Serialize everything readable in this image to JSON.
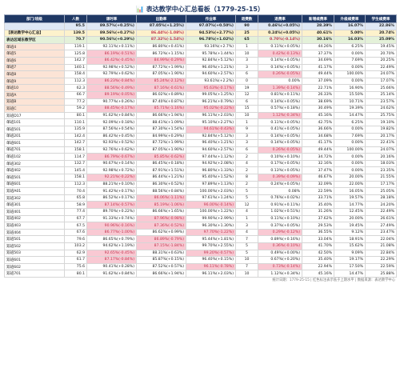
{
  "title": "📊 表达教学中心汇总看板（1779-25-15）",
  "table": {
    "header": [
      "部门/班级",
      "人数",
      "课时率",
      "出勤率",
      "作业率",
      "退费数",
      "退费率",
      "新增续费率",
      "升级续费率",
      "学生续费率"
    ],
    "rows": [
      [
        "",
        "95.5",
        "89.57%(+0.25%)",
        "87.05%(+1.25%)",
        "97.07%(+0.50%)",
        "90",
        "0.46%(+0.05%)",
        "28.39%",
        "16.07%",
        "22.86%"
      ],
      [
        "【表达教学中心汇总】",
        "139.5",
        "89.56%(+0.27%)",
        "86.44%(-1.08%)",
        "94.53%(+2.77%)",
        "25",
        "0.24%(+0.05%)",
        "40.61%",
        "5.00%",
        "20.74%"
      ],
      [
        "表达区域东教学区",
        "70.7",
        "90.56%(+0.29%)",
        "87.32%(-1.54%)",
        "96.78%(+1.02%)",
        "65",
        "0.70%(-0.14%)",
        "30.16%",
        "16.03%",
        "25.09%"
      ],
      [
        "单班4",
        "119.1",
        "92.11%(+0.11%)",
        "86.80%(+0.41%)",
        "93.16%(+2.7%)",
        "1",
        "0.11%(+0.05%)",
        "44.26%",
        "6.25%",
        "19.45%"
      ],
      [
        "单班5",
        "125.8",
        "86.19%(-0.51%)",
        "86.72%(+1.15%)",
        "95.78%(+1.44%)",
        "10",
        "0.42%(-0.13%)",
        "37.37%",
        "0.00%",
        "20.70%"
      ],
      [
        "单班6",
        "142.7",
        "86.42%(-0.45%)",
        "84.99%(-0.29%)",
        "92.84%(+5.12%)",
        "3",
        "0.14%(+0.05%)",
        "34.69%",
        "7.69%",
        "20.25%"
      ],
      [
        "单班7",
        "140.1",
        "92.98%(+0.52%)",
        "87.72%(+1.99%)",
        "96.40%(+1.21%)",
        "3",
        "0.14%(+0.05%)",
        "41.17%",
        "0.00%",
        "22.49%"
      ],
      [
        "单班8",
        "158.4",
        "92.79%(+0.62%)",
        "87.05%(+1.90%)",
        "94.60%(+2.57%)",
        "6",
        "0.26%(-0.05%)",
        "49.44%",
        "100.00%",
        "24.07%"
      ],
      [
        "单班9",
        "112.3",
        "86.23%(-0.84%)",
        "85.24%(-2.12%)",
        "93.61%(+2.2%)",
        "0",
        "0.00%",
        "37.09%",
        "0.00%",
        "17.07%"
      ],
      [
        "单班10",
        "62.3",
        "88.56%(-0.49%)",
        "87.16%(-0.61%)",
        "95.63%(-0.17%)",
        "19",
        "1.39%(-0.14%)",
        "22.71%",
        "16.90%",
        "25.66%"
      ],
      [
        "双班A",
        "66.7",
        "89.19%(-0.05%)",
        "86.02%(+0.89%)",
        "99.05%(+1.25%)",
        "12",
        "0.81%(+0.11%)",
        "26.33%",
        "15.50%",
        "25.14%"
      ],
      [
        "双班B",
        "77.2",
        "90.77%(+0.26%)",
        "87.40%(+0.87%)",
        "96.21%(+0.79%)",
        "6",
        "0.14%(+0.05%)",
        "38.69%",
        "10.71%",
        "23.57%"
      ],
      [
        "双班C",
        "59.2",
        "88.45%(-0.17%)",
        "85.71%(-1.16%)",
        "95.02%(-0.22%)",
        "15",
        "0.57%(+0.18%)",
        "30.49%",
        "19.39%",
        "24.62%"
      ],
      [
        "双班D17",
        "80.1",
        "91.62%(+0.84%)",
        "86.66%(+1.94%)",
        "96.11%(+2.03%)",
        "10",
        "1.12%(-0.34%)",
        "45.16%",
        "14.47%",
        "25.75%"
      ],
      [
        "单班101",
        "110.1",
        "92.09%(+0.18%)",
        "88.41%(+1.09%)",
        "95.10%(+2.27%)",
        "1",
        "0.11%(+0.05%)",
        "42.75%",
        "6.25%",
        "19.10%"
      ],
      [
        "单班501",
        "135.9",
        "87.56%(+0.54%)",
        "87.30%(+1.54%)",
        "94.61%(-0.43%)",
        "9",
        "0.41%(+0.05%)",
        "36.66%",
        "0.00%",
        "19.82%"
      ],
      [
        "单班201",
        "142.4",
        "86.42%(+0.45%)",
        "84.99%(+0.29%)",
        "92.84%(+5.12%)",
        "3",
        "0.14%(+0.05%)",
        "34.68%",
        "7.69%",
        "20.17%"
      ],
      [
        "单班601",
        "142.7",
        "92.93%(+0.52%)",
        "87.72%(+1.99%)",
        "96.40%(+1.21%)",
        "3",
        "0.14%(+0.05%)",
        "41.17%",
        "0.00%",
        "22.41%"
      ],
      [
        "单班701",
        "158.1",
        "92.76%(+0.62%)",
        "87.05%(+1.90%)",
        "94.60%(+2.57%)",
        "6",
        "0.26%(-0.05%)",
        "49.44%",
        "100.00%",
        "24.07%"
      ],
      [
        "单班102",
        "114.7",
        "86.79%(-0.67%)",
        "85.85%(-0.62%)",
        "97.44%(+1.12%)",
        "2",
        "0.10%(+0.10%)",
        "34.72%",
        "0.00%",
        "20.16%"
      ],
      [
        "单班302",
        "132.7",
        "90.67%(+0.14%)",
        "86.45%(+0.18%)",
        "94.92%(+2.08%)",
        "4",
        "0.17%(+0.05%)",
        "32.16%",
        "0.00%",
        "18.03%"
      ],
      [
        "单班402",
        "145.4",
        "92.98%(+0.72%)",
        "87.91%(+1.51%)",
        "96.80%(+1.33%)",
        "2",
        "0.13%(+0.05%)",
        "37.47%",
        "0.00%",
        "23.35%"
      ],
      [
        "单班501",
        "158.1",
        "92.21%(-0.22%)",
        "86.44%(+1.21%)",
        "95.40%(+1.52%)",
        "8",
        "0.39%(-0.09%)",
        "46.67%",
        "20.00%",
        "21.55%"
      ],
      [
        "单班601",
        "112.3",
        "88.21%(+0.10%)",
        "86.30%(+0.52%)",
        "97.89%(+1.13%)",
        "2",
        "0.24%(+0.05%)",
        "32.09%",
        "22.00%",
        "17.17%"
      ],
      [
        "双班A01",
        "70.4",
        "91.42%(+0.17%)",
        "88.56%(+0.84%)",
        "100.00%(+2.03%)",
        "5",
        "0.08%",
        "22.59%",
        "16.05%",
        "25.05%"
      ],
      [
        "双班302",
        "65.8",
        "86.52%(+0.17%)",
        "86.06%(-1.11%)",
        "97.61%(+1.24%)",
        "5",
        "0.76%(+0.02%)",
        "33.71%",
        "19.57%",
        "28.18%"
      ],
      [
        "单班301",
        "58.9",
        "87.14%(-0.57%)",
        "85.19%(-1.06%)",
        "96.00%(-0.14%)",
        "12",
        "0.91%(+0.11%)",
        "35.40%",
        "14.77%",
        "24.20%"
      ],
      [
        "双班401",
        "77.4",
        "89.70%(+0.22%)",
        "86.66%(+1.65%)",
        "100.00%(+1.22%)",
        "4",
        "1.02%(+0.51%)",
        "31.26%",
        "12.45%",
        "22.49%"
      ],
      [
        "双班402",
        "67.7",
        "91.33%(+0.74%)",
        "87.96%(-0.98%)",
        "99.90%(+2.99%)",
        "1",
        "0.11%(+0.10%)",
        "37.62%",
        "20.00%",
        "26.61%"
      ],
      [
        "双班403",
        "67.5",
        "90.96%(-0.16%)",
        "87.36%(-0.52%)",
        "96.30%(+1.30%)",
        "3",
        "0.37%(+0.05%)",
        "29.53%",
        "19.45%",
        "27.49%"
      ],
      [
        "双班404",
        "67.6",
        "86.77%(-1.00%)",
        "86.62%(+0.99%)",
        "97.70%(-1.22%)",
        "4",
        "0.29%(-0.12%)",
        "36.55%",
        "9.12%",
        "23.47%"
      ],
      [
        "双班501",
        "79.6",
        "86.65%(+0.79%)",
        "86.89%(-0.79%)",
        "95.44%(+1.81%)",
        "7",
        "0.89%(+0.16%)",
        "33.04%",
        "18.91%",
        "22.04%"
      ],
      [
        "双班502",
        "103.2",
        "94.62%(+1.19%)",
        "87.15%(-1.84%)",
        "99.70%(+2.55%)",
        "5",
        "0.36%(-0.10%)",
        "41.70%",
        "15.62%",
        "21.08%"
      ],
      [
        "双班503",
        "62.9",
        "92.65%(-0.45%)",
        "88.31%(+0.63%)",
        "99.20%(-0.57%)",
        "5",
        "0.49%(+0.00%)",
        "42.50%",
        "9.09%",
        "22.84%"
      ],
      [
        "双班601",
        "61.7",
        "87.17%(-0.84%)",
        "85.87%(+0.15%)",
        "96.40%(+0.15%)",
        "10",
        "0.67%(+0.20%)",
        "35.40%",
        "19.17%",
        "22.29%"
      ],
      [
        "双班602",
        "75.6",
        "90.41%(+0.28%)",
        "87.52%(+0.57%)",
        "96.11%(-0.78%)",
        "7",
        "0.73%(-0.14%)",
        "22.94%",
        "17.50%",
        "22.59%"
      ],
      [
        "双班701",
        "80.1",
        "91.62%(+0.84%)",
        "86.66%(+1.94%)",
        "96.11%(+2.03%)",
        "10",
        "1.12%(+0.34%)",
        "45.16%",
        "14.47%",
        "25.88%"
      ]
    ]
  },
  "footer": "统计日期：1779-25-15 | 红色标注表示低于上期水平 | 数据来源：表达教学中心"
}
